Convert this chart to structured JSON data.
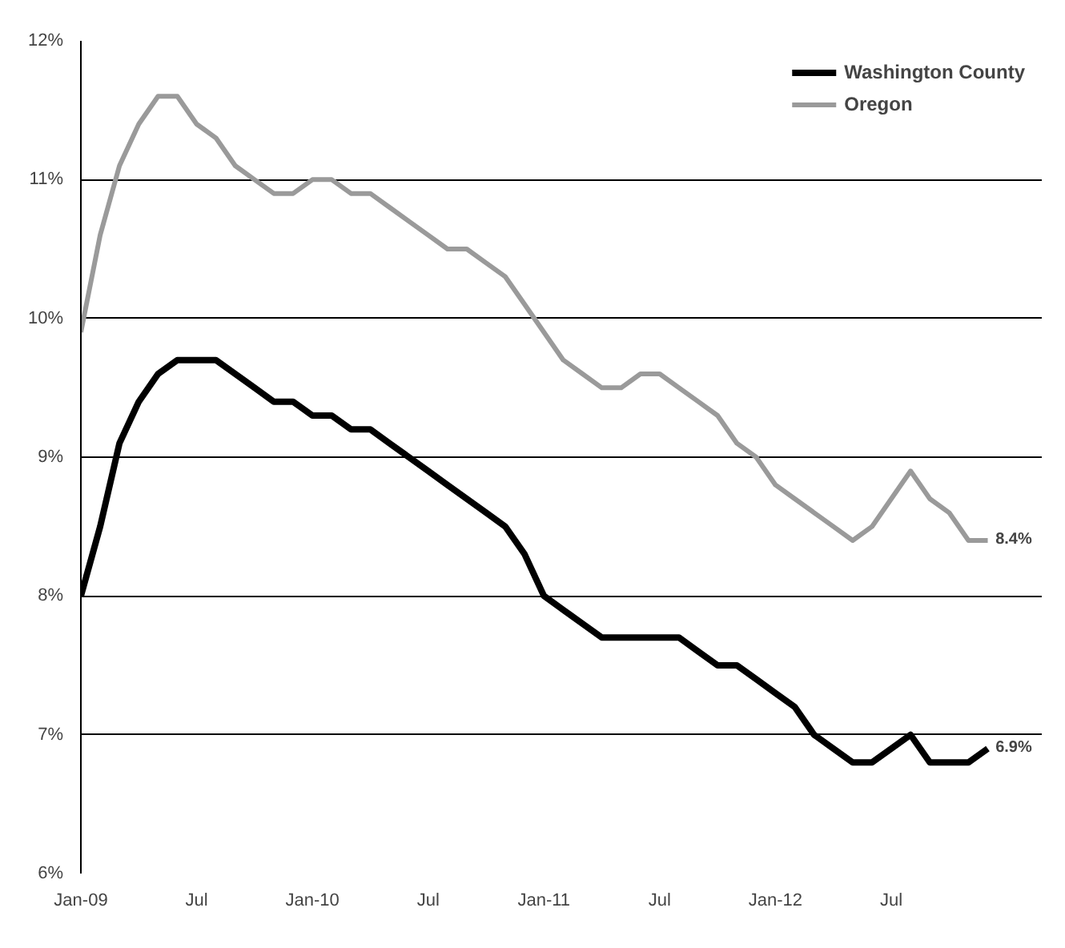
{
  "chart_data": {
    "type": "line",
    "categories": [
      "Jan-09",
      null,
      null,
      null,
      null,
      null,
      "Jul",
      null,
      null,
      null,
      null,
      null,
      "Jan-10",
      null,
      null,
      null,
      null,
      null,
      "Jul",
      null,
      null,
      null,
      null,
      null,
      "Jan-11",
      null,
      null,
      null,
      null,
      null,
      "Jul",
      null,
      null,
      null,
      null,
      null,
      "Jan-12",
      null,
      null,
      null,
      null,
      null,
      "Jul",
      null,
      null,
      null,
      null,
      null
    ],
    "series": [
      {
        "name": "Washington County",
        "color": "#000000",
        "values": [
          8.0,
          8.5,
          9.1,
          9.4,
          9.6,
          9.7,
          9.7,
          9.7,
          9.6,
          9.5,
          9.4,
          9.4,
          9.3,
          9.3,
          9.2,
          9.2,
          9.1,
          9.0,
          8.9,
          8.8,
          8.7,
          8.6,
          8.5,
          8.3,
          8.0,
          7.9,
          7.8,
          7.7,
          7.7,
          7.7,
          7.7,
          7.7,
          7.6,
          7.5,
          7.5,
          7.4,
          7.3,
          7.2,
          7.0,
          6.9,
          6.8,
          6.8,
          6.9,
          7.0,
          6.8,
          6.8,
          6.8,
          6.9
        ]
      },
      {
        "name": "Oregon",
        "color": "#9a9a9a",
        "values": [
          9.9,
          10.6,
          11.1,
          11.4,
          11.6,
          11.6,
          11.4,
          11.3,
          11.1,
          11.0,
          10.9,
          10.9,
          11.0,
          11.0,
          10.9,
          10.9,
          10.8,
          10.7,
          10.6,
          10.5,
          10.5,
          10.4,
          10.3,
          10.1,
          9.9,
          9.7,
          9.6,
          9.5,
          9.5,
          9.6,
          9.6,
          9.5,
          9.4,
          9.3,
          9.1,
          9.0,
          8.8,
          8.7,
          8.6,
          8.5,
          8.4,
          8.5,
          8.7,
          8.9,
          8.7,
          8.6,
          8.4,
          8.4
        ]
      }
    ],
    "ylim": [
      6,
      12
    ],
    "yticks": [
      {
        "value": 6,
        "label": "6%"
      },
      {
        "value": 7,
        "label": "7%"
      },
      {
        "value": 8,
        "label": "8%"
      },
      {
        "value": 9,
        "label": "9%"
      },
      {
        "value": 10,
        "label": "10%"
      },
      {
        "value": 11,
        "label": "11%"
      },
      {
        "value": 12,
        "label": "12%"
      }
    ],
    "grid": "y",
    "legend": "top right",
    "marker": "none",
    "line_style": "solid",
    "annotations": [
      "6.9%",
      "8.4%"
    ]
  }
}
